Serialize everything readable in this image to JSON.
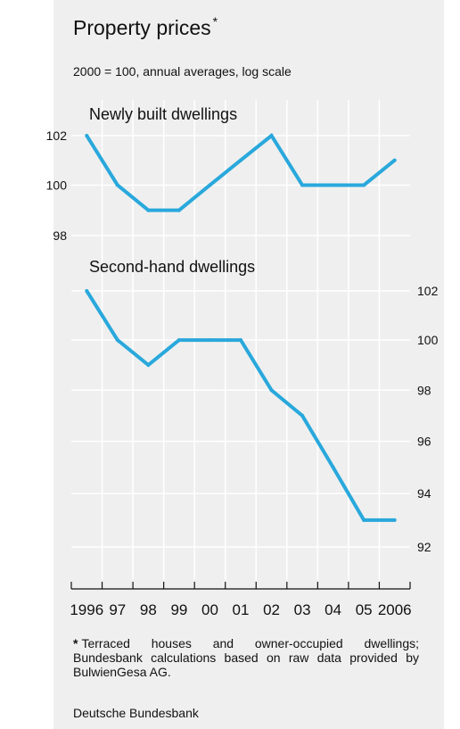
{
  "title": "Property prices",
  "title_marker": "*",
  "subtitle": "2000 = 100, annual averages, log scale",
  "footnote": {
    "marker": "*",
    "text": "Terraced houses and owner-occupied dwellings; Bundesbank calculations based on raw data provided by BulwienGesa AG."
  },
  "source": "Deutsche Bundesbank",
  "colors": {
    "line": "#29a8dc",
    "panel": "#efefef",
    "grid": "#ffffff"
  },
  "chart_data": [
    {
      "type": "line",
      "title": "Newly built dwellings",
      "x": [
        "1996",
        "97",
        "98",
        "99",
        "00",
        "01",
        "02",
        "03",
        "04",
        "05",
        "2006"
      ],
      "values": [
        102,
        100,
        99,
        99,
        100,
        101,
        102,
        100,
        100,
        100,
        101
      ],
      "y_ticks": [
        98,
        100,
        102
      ],
      "y_axis_side": "left",
      "scale": "log"
    },
    {
      "type": "line",
      "title": "Second-hand dwellings",
      "x": [
        "1996",
        "97",
        "98",
        "99",
        "00",
        "01",
        "02",
        "03",
        "04",
        "05",
        "2006"
      ],
      "values": [
        102,
        100,
        99,
        100,
        100,
        100,
        98,
        97,
        95,
        93,
        93
      ],
      "y_ticks": [
        92,
        94,
        96,
        98,
        100,
        102
      ],
      "y_axis_side": "right",
      "scale": "log"
    }
  ]
}
